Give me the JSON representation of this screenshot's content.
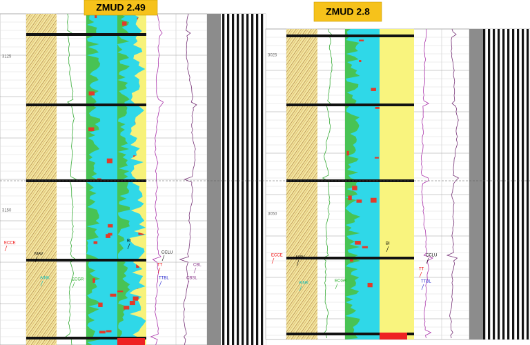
{
  "panels": [
    {
      "title": "ZMUD 2.49",
      "depth_labels": [
        "3125",
        "3150"
      ],
      "curve_labels": [
        "ECCE",
        "MAV",
        "AINK",
        "ECGR",
        "BI",
        "CCLU",
        "TT",
        "TTBL",
        "CBL",
        "CBSL"
      ]
    },
    {
      "title": "ZMUD 2.8",
      "depth_labels": [
        "3025",
        "3050"
      ],
      "curve_labels": [
        "ECCE",
        "MAV",
        "AINK",
        "ECGR",
        "BI",
        "CCLU",
        "TT",
        "TTBL"
      ]
    }
  ]
}
